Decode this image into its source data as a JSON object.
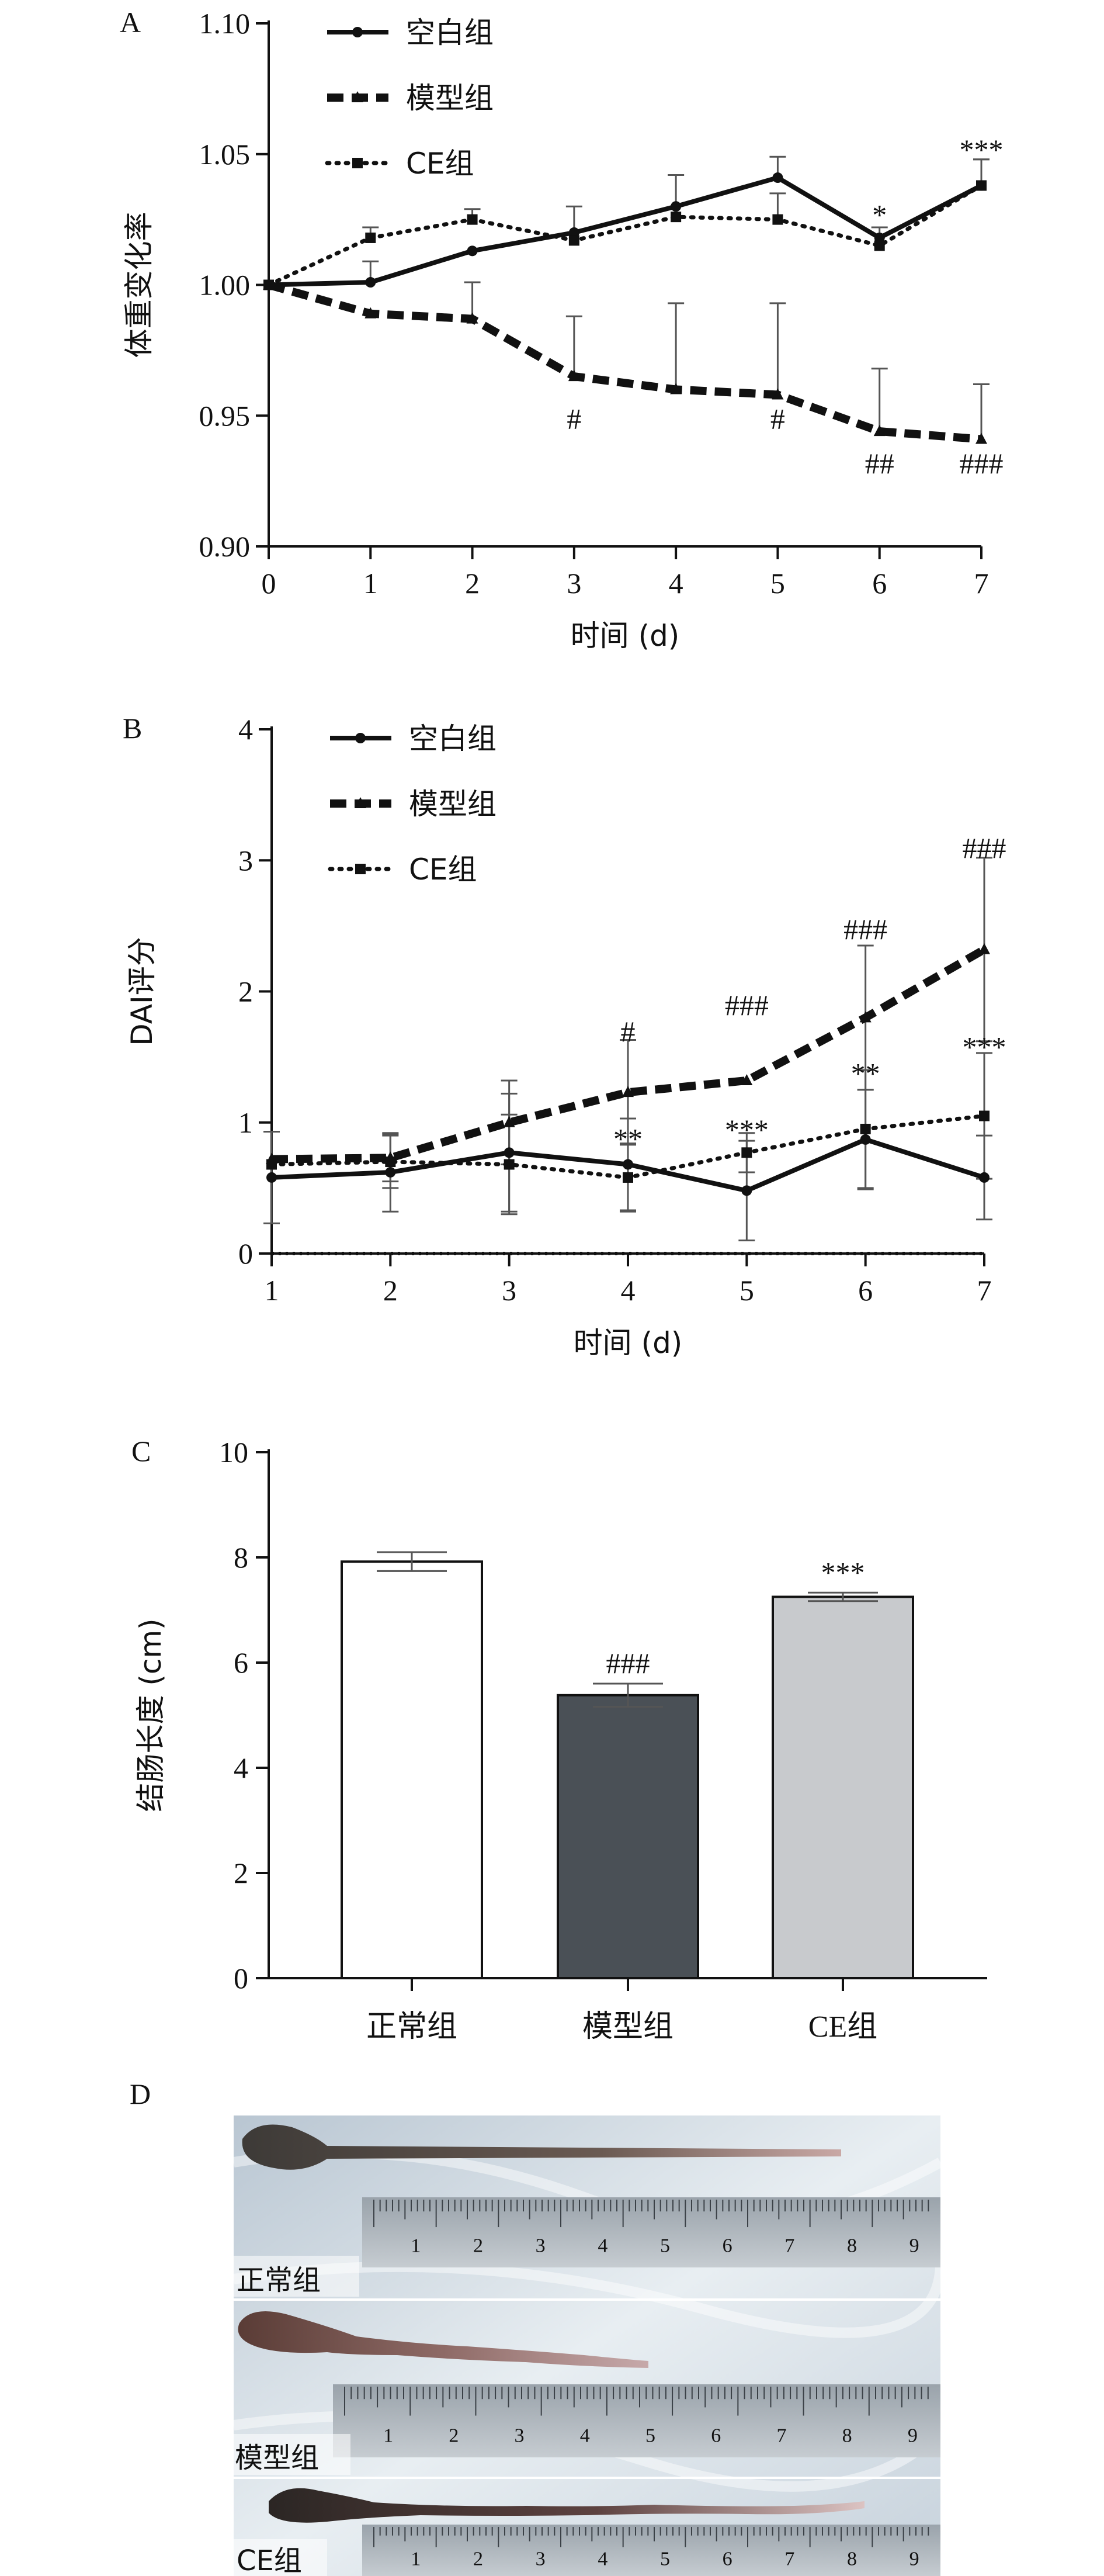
{
  "chart_data": [
    {
      "panel": "A",
      "type": "line",
      "ylabel": "体重变化率",
      "xlabel": "时间 (d)",
      "ylim": [
        0.9,
        1.1
      ],
      "yticks": [
        "0.90",
        "0.95",
        "1.00",
        "1.05",
        "1.10"
      ],
      "xlim": [
        0,
        7
      ],
      "x": [
        0,
        1,
        2,
        3,
        4,
        5,
        6,
        7
      ],
      "legend": [
        "空白组",
        "模型组",
        "CE组"
      ],
      "series": [
        {
          "name": "空白组",
          "style": "solid",
          "marker": "circle",
          "values": [
            1.0,
            1.001,
            1.013,
            1.02,
            1.03,
            1.041,
            1.018,
            1.038
          ],
          "err": [
            0,
            0.008,
            0.0,
            0.01,
            0.012,
            0.008,
            0.004,
            0.01
          ]
        },
        {
          "name": "模型组",
          "style": "dashed",
          "marker": "triangle",
          "values": [
            1.0,
            0.989,
            0.987,
            0.965,
            0.96,
            0.958,
            0.944,
            0.941
          ],
          "err": [
            0,
            0.0,
            0.014,
            0.023,
            0.033,
            0.035,
            0.024,
            0.021
          ]
        },
        {
          "name": "CE组",
          "style": "dotted",
          "marker": "square",
          "values": [
            1.0,
            1.018,
            1.025,
            1.017,
            1.026,
            1.025,
            1.015,
            1.038
          ],
          "err": [
            0,
            0.004,
            0.004,
            0.0,
            0.0,
            0.01,
            0.004,
            0.01
          ]
        }
      ],
      "annotations": [
        {
          "x": 6,
          "y": 1.027,
          "text": "*"
        },
        {
          "x": 7,
          "y": 1.052,
          "text": "***"
        },
        {
          "x": 3,
          "y": 0.949,
          "text": "#"
        },
        {
          "x": 5,
          "y": 0.949,
          "text": "#"
        },
        {
          "x": 6,
          "y": 0.932,
          "text": "##"
        },
        {
          "x": 7,
          "y": 0.932,
          "text": "###"
        }
      ]
    },
    {
      "panel": "B",
      "type": "line",
      "ylabel": "DAI评分",
      "xlabel": "时间 (d)",
      "ylim": [
        0,
        4
      ],
      "yticks": [
        "0",
        "1",
        "2",
        "3",
        "4"
      ],
      "xlim": [
        1,
        7
      ],
      "x": [
        1,
        2,
        3,
        4,
        5,
        6,
        7
      ],
      "legend": [
        "空白组",
        "模型组",
        "CE组"
      ],
      "series": [
        {
          "name": "空白组",
          "style": "solid",
          "marker": "circle",
          "values": [
            0.58,
            0.62,
            0.77,
            0.68,
            0.48,
            0.87,
            0.58
          ],
          "err": [
            0.35,
            0.3,
            0.45,
            0.35,
            0.38,
            0.38,
            0.32
          ]
        },
        {
          "name": "模型组",
          "style": "dashed",
          "marker": "triangle",
          "values": [
            0.72,
            0.73,
            1.0,
            1.23,
            1.32,
            1.8,
            2.32
          ],
          "err": [
            0.0,
            0.18,
            0.32,
            0.4,
            0.0,
            0.55,
            0.7
          ]
        },
        {
          "name": "CE组",
          "style": "dotted",
          "marker": "square",
          "values": [
            0.68,
            0.7,
            0.68,
            0.58,
            0.77,
            0.95,
            1.05
          ],
          "err": [
            0.0,
            0.2,
            0.38,
            0.26,
            0.15,
            0.45,
            0.48
          ]
        }
      ],
      "annotations": [
        {
          "x": 4,
          "y": 1.7,
          "text": "#"
        },
        {
          "x": 5,
          "y": 1.9,
          "text": "###"
        },
        {
          "x": 6,
          "y": 2.48,
          "text": "###"
        },
        {
          "x": 7,
          "y": 3.1,
          "text": "###"
        },
        {
          "x": 4,
          "y": 0.88,
          "text": "**"
        },
        {
          "x": 5,
          "y": 0.95,
          "text": "***"
        },
        {
          "x": 6,
          "y": 1.38,
          "text": "**"
        },
        {
          "x": 7,
          "y": 1.58,
          "text": "***"
        }
      ]
    },
    {
      "panel": "C",
      "type": "bar",
      "ylabel": "结肠长度 (cm)",
      "ylim": [
        0,
        10
      ],
      "yticks": [
        "0",
        "2",
        "4",
        "6",
        "8",
        "10"
      ],
      "categories": [
        "正常组",
        "模型组",
        "CE组"
      ],
      "values": [
        7.92,
        5.38,
        7.25
      ],
      "err": [
        0.18,
        0.22,
        0.08
      ],
      "colors": [
        "#ffffff",
        "#4a5056",
        "#c8cacd"
      ],
      "annotations": [
        {
          "index": 1,
          "text": "###"
        },
        {
          "index": 2,
          "text": "***"
        }
      ]
    }
  ],
  "panel_d": {
    "label": "D",
    "rows": [
      {
        "label": "正常组"
      },
      {
        "label": "模型组"
      },
      {
        "label": "CE组"
      }
    ],
    "ruler_numbers": [
      "1",
      "2",
      "3",
      "4",
      "5",
      "6",
      "7",
      "8",
      "9"
    ]
  }
}
